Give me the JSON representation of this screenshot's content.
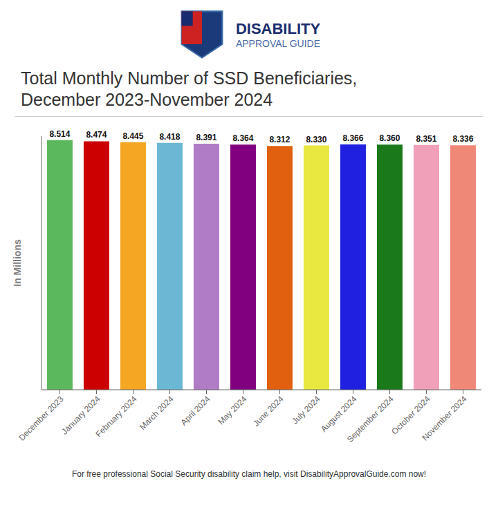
{
  "chart_data": {
    "type": "bar",
    "title": "Total Monthly Number of SSD Beneficiaries,",
    "subtitle": "December 2023-November 2024",
    "ylabel": "In Millions",
    "annotations": [
      "DISABILITY",
      "APPROVAL GUIDE",
      "For free professional Social Security disability claim help, visit DisabilityApprovalGuide.com now!"
    ],
    "categories": [
      "December 2023",
      "January 2024",
      "February 2024",
      "March 2024",
      "April 2024",
      "May 2024",
      "June 2024",
      "July 2024",
      "August 2024",
      "September 2024",
      "October 2024",
      "November 2024"
    ],
    "values": [
      8.514,
      8.474,
      8.445,
      8.418,
      8.391,
      8.364,
      8.312,
      8.33,
      8.366,
      8.36,
      8.351,
      8.336
    ],
    "value_labels": [
      "8.514",
      "8.474",
      "8.445",
      "8.418",
      "8.391",
      "8.364",
      "8.312",
      "8.330",
      "8.366",
      "8.360",
      "8.351",
      "8.336"
    ],
    "data_labels": true,
    "colors": [
      "#5cb85c",
      "#cc0000",
      "#f5a623",
      "#6bb8d4",
      "#b07cc6",
      "#800080",
      "#e06010",
      "#e8e840",
      "#2020e0",
      "#1a7a1a",
      "#f0a0b8",
      "#f08878"
    ],
    "ylim": [
      0,
      8.65
    ],
    "tick_labels": "x",
    "grid": false
  }
}
